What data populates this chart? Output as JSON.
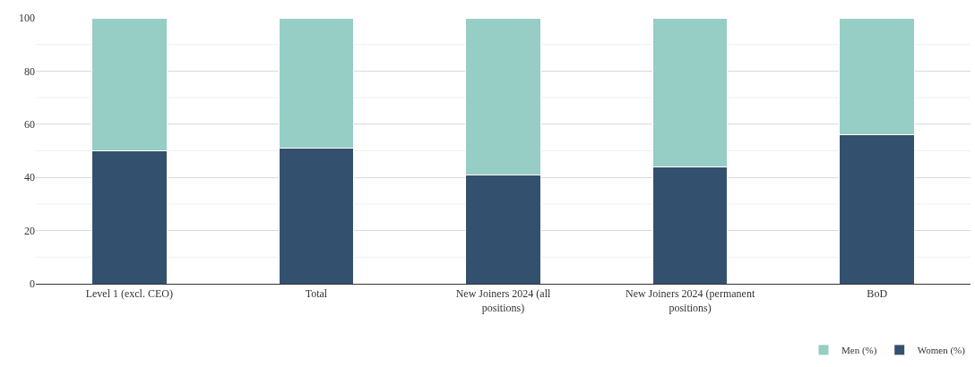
{
  "chart_data": {
    "type": "bar",
    "stacked": true,
    "categories": [
      "Level 1 (excl. CEO)",
      "Total",
      "New Joiners 2024 (all positions)",
      "New Joiners 2024 (permanent positions)",
      "BoD"
    ],
    "series": [
      {
        "name": "Women (%)",
        "color": "#34506f",
        "values": [
          50,
          51,
          41,
          44,
          56
        ]
      },
      {
        "name": "Men (%)",
        "color": "#96cdc4",
        "values": [
          50,
          49,
          59,
          56,
          44
        ]
      }
    ],
    "ylim": [
      0,
      100
    ],
    "yticks": [
      0,
      {
        "value": 10,
        "label": null
      },
      20,
      {
        "value": 30,
        "label": null
      },
      40,
      {
        "value": 50,
        "label": null
      },
      60,
      {
        "value": 70,
        "label": null
      },
      80,
      {
        "value": 90,
        "label": null
      },
      100
    ],
    "grid": "y",
    "legend": "bottom right"
  }
}
